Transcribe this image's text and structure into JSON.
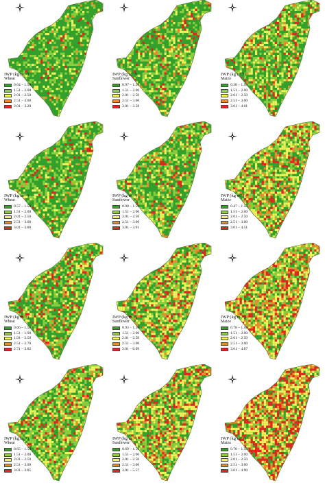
{
  "colors": [
    "#33a02c",
    "#8ccf3e",
    "#f2f25a",
    "#f08a2a",
    "#e0261e"
  ],
  "panels": [
    {
      "title": "IWP (kg m⁻³)",
      "crop": "Wheat",
      "classes": [
        "0.64 – 1.50",
        "1.51 – 2.00",
        "2.01 – 2.50",
        "2.51 – 3.00",
        "3.01 – 3.20"
      ],
      "mix": [
        0.62,
        0.22,
        0.1,
        0.03,
        0.03
      ]
    },
    {
      "title": "IWP (kg m⁻³)",
      "crop": "Sunflower",
      "classes": [
        "0.97 – 1.50",
        "1.51 – 2.00",
        "2.01 – 2.50",
        "2.51 – 3.00",
        "3.01 – 3.58"
      ],
      "mix": [
        0.5,
        0.25,
        0.14,
        0.05,
        0.06
      ]
    },
    {
      "title": "IWP (kg m⁻³)",
      "crop": "Maize",
      "classes": [
        "0.38 – 1.50",
        "1.51 – 2.00",
        "2.01 – 2.50",
        "2.51 – 3.00",
        "3.01 – 4.01"
      ],
      "mix": [
        0.4,
        0.25,
        0.2,
        0.07,
        0.08
      ]
    },
    {
      "title": "IWP (kg m⁻³)",
      "crop": "Wheat",
      "classes": [
        "0.57 – 1.50",
        "1.51 – 2.00",
        "2.01 – 2.50",
        "2.51 – 3.00",
        "3.01 – 3.80"
      ],
      "mix": [
        0.55,
        0.25,
        0.12,
        0.04,
        0.04
      ]
    },
    {
      "title": "IWP (kg m⁻³)",
      "crop": "Sunflower",
      "classes": [
        "0.90 – 1.50",
        "1.51 – 2.00",
        "2.01 – 2.50",
        "2.51 – 3.00",
        "3.01 – 3.91"
      ],
      "mix": [
        0.45,
        0.25,
        0.18,
        0.06,
        0.06
      ]
    },
    {
      "title": "IWP (kg m⁻³)",
      "crop": "Maize",
      "classes": [
        "0.47 – 1.50",
        "1.51 – 2.00",
        "2.01 – 2.50",
        "2.51 – 3.00",
        "3.01 – 4.51"
      ],
      "mix": [
        0.28,
        0.22,
        0.25,
        0.13,
        0.12
      ]
    },
    {
      "title": "IWP (kg m⁻³)",
      "crop": "Wheat",
      "classes": [
        "0.66 – 1.50",
        "1.51 – 1.90",
        "1.91 – 2.50",
        "2.51 – 2.70",
        "2.71 – 3.82"
      ],
      "mix": [
        0.45,
        0.22,
        0.18,
        0.07,
        0.08
      ]
    },
    {
      "title": "IWP (kg m⁻³)",
      "crop": "Sunflower",
      "classes": [
        "0.93 – 1.50",
        "1.51 – 2.00",
        "2.01 – 2.50",
        "2.51 – 3.00",
        "3.01 – 6.09"
      ],
      "mix": [
        0.3,
        0.22,
        0.25,
        0.11,
        0.12
      ]
    },
    {
      "title": "IWP (kg m⁻³)",
      "crop": "Maize",
      "classes": [
        "0.78 – 1.50",
        "1.51 – 2.00",
        "2.01 – 2.50",
        "2.51 – 3.00",
        "3.01 – 4.67"
      ],
      "mix": [
        0.18,
        0.2,
        0.28,
        0.16,
        0.18
      ]
    },
    {
      "title": "IWP (kg m⁻³)",
      "crop": "Wheat",
      "classes": [
        "0.65 – 1.50",
        "1.51 – 2.00",
        "2.01 – 2.50",
        "2.51 – 3.00",
        "3.01 – 3.85"
      ],
      "mix": [
        0.3,
        0.3,
        0.22,
        0.08,
        0.1
      ]
    },
    {
      "title": "IWP (kg m⁻³)",
      "crop": "Sunflower",
      "classes": [
        "0.69 – 1.50",
        "1.51 – 2.00",
        "2.01 – 2.50",
        "2.51 – 3.00",
        "3.01 – 5.57"
      ],
      "mix": [
        0.25,
        0.25,
        0.25,
        0.1,
        0.15
      ]
    },
    {
      "title": "IWP (kg m⁻³)",
      "crop": "Maize",
      "classes": [
        "0.78 – 1.50",
        "1.51 – 2.00",
        "2.01 – 2.50",
        "2.51 – 3.00",
        "3.01 – 4.90"
      ],
      "mix": [
        0.12,
        0.15,
        0.28,
        0.17,
        0.28
      ]
    }
  ]
}
